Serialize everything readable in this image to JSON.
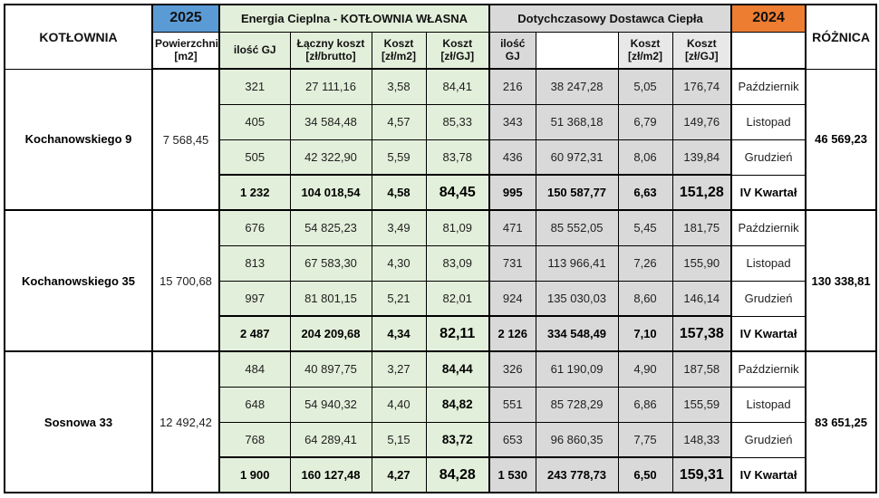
{
  "table": {
    "header": {
      "kotlownia": "KOTŁOWNIA",
      "year_own": "2025",
      "year_supplier": "2024",
      "own_title": "Energia Cieplna - KOTŁOWNIA WŁASNA",
      "supplier_title": "Dotychczasowy Dostawca Ciepła",
      "roznica": "RÓŻNICA",
      "powierzchnia": "Powierzchnia\n[m2]",
      "own_cols": [
        "ilość GJ",
        "Łączny koszt\n[zł/brutto]",
        "Koszt\n[zł/m2]",
        "Koszt\n[zł/GJ]"
      ],
      "supplier_cols": [
        "ilość GJ",
        "",
        "Koszt\n[zł/m2]",
        "Koszt\n[zł/GJ]"
      ]
    },
    "colors": {
      "year_2025": "#5b9bd5",
      "year_2024": "#ed7d31",
      "own_section": "#e2efda",
      "supplier_section": "#d9d9d9"
    },
    "groups": [
      {
        "name": "Kochanowskiego 9",
        "area": "7 568,45",
        "roznica": "46 569,23",
        "own_gj_bold": false,
        "rows": [
          {
            "period": "Październik",
            "own": [
              "321",
              "27 111,16",
              "3,58",
              "84,41"
            ],
            "supplier": [
              "216",
              "38 247,28",
              "5,05",
              "176,74"
            ],
            "total": false
          },
          {
            "period": "Listopad",
            "own": [
              "405",
              "34 584,48",
              "4,57",
              "85,33"
            ],
            "supplier": [
              "343",
              "51 368,18",
              "6,79",
              "149,76"
            ],
            "total": false
          },
          {
            "period": "Grudzień",
            "own": [
              "505",
              "42 322,90",
              "5,59",
              "83,78"
            ],
            "supplier": [
              "436",
              "60 972,31",
              "8,06",
              "139,84"
            ],
            "total": false
          },
          {
            "period": "IV Kwartał",
            "own": [
              "1 232",
              "104 018,54",
              "4,58",
              "84,45"
            ],
            "supplier": [
              "995",
              "150 587,77",
              "6,63",
              "151,28"
            ],
            "total": true
          }
        ]
      },
      {
        "name": "Kochanowskiego 35",
        "area": "15 700,68",
        "roznica": "130 338,81",
        "own_gj_bold": false,
        "rows": [
          {
            "period": "Październik",
            "own": [
              "676",
              "54 825,23",
              "3,49",
              "81,09"
            ],
            "supplier": [
              "471",
              "85 552,05",
              "5,45",
              "181,75"
            ],
            "total": false
          },
          {
            "period": "Listopad",
            "own": [
              "813",
              "67 583,30",
              "4,30",
              "83,09"
            ],
            "supplier": [
              "731",
              "113 966,41",
              "7,26",
              "155,90"
            ],
            "total": false
          },
          {
            "period": "Grudzień",
            "own": [
              "997",
              "81 801,15",
              "5,21",
              "82,01"
            ],
            "supplier": [
              "924",
              "135 030,03",
              "8,60",
              "146,14"
            ],
            "total": false
          },
          {
            "period": "IV Kwartał",
            "own": [
              "2 487",
              "204 209,68",
              "4,34",
              "82,11"
            ],
            "supplier": [
              "2 126",
              "334 548,49",
              "7,10",
              "157,38"
            ],
            "total": true
          }
        ]
      },
      {
        "name": "Sosnowa 33",
        "area": "12 492,42",
        "roznica": "83 651,25",
        "own_gj_bold": true,
        "rows": [
          {
            "period": "Październik",
            "own": [
              "484",
              "40 897,75",
              "3,27",
              "84,44"
            ],
            "supplier": [
              "326",
              "61 190,09",
              "4,90",
              "187,58"
            ],
            "total": false
          },
          {
            "period": "Listopad",
            "own": [
              "648",
              "54 940,32",
              "4,40",
              "84,82"
            ],
            "supplier": [
              "551",
              "85 728,29",
              "6,86",
              "155,59"
            ],
            "total": false
          },
          {
            "period": "Grudzień",
            "own": [
              "768",
              "64 289,41",
              "5,15",
              "83,72"
            ],
            "supplier": [
              "653",
              "96 860,35",
              "7,75",
              "148,33"
            ],
            "total": false
          },
          {
            "period": "IV Kwartał",
            "own": [
              "1 900",
              "160 127,48",
              "4,27",
              "84,28"
            ],
            "supplier": [
              "1 530",
              "243 778,73",
              "6,50",
              "159,31"
            ],
            "total": true
          }
        ]
      }
    ]
  }
}
